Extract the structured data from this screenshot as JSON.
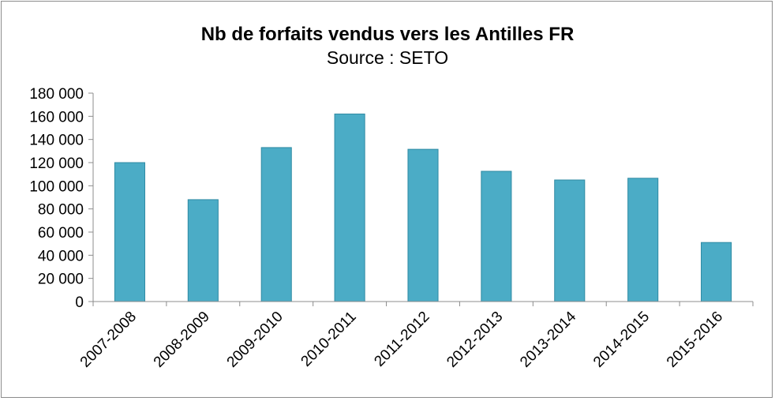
{
  "chart_data": {
    "type": "bar",
    "title": "Nb de forfaits vendus vers les Antilles FR",
    "subtitle": "Source : SETO",
    "xlabel": "",
    "ylabel": "",
    "categories": [
      "2007-2008",
      "2008-2009",
      "2009-2010",
      "2010-2011",
      "2011-2012",
      "2012-2013",
      "2013-2014",
      "2014-2015",
      "2015-2016"
    ],
    "values": [
      120000,
      88000,
      133000,
      162000,
      131500,
      112500,
      105000,
      106500,
      51000
    ],
    "ylim": [
      0,
      180000
    ],
    "yticks": [
      0,
      20000,
      40000,
      60000,
      80000,
      100000,
      120000,
      140000,
      160000,
      180000
    ],
    "ytick_labels": [
      "0",
      "20 000",
      "40 000",
      "60 000",
      "80 000",
      "100 000",
      "120 000",
      "140 000",
      "160 000",
      "180 000"
    ],
    "grid": false,
    "legend": "none",
    "bar_color": "#4bacc6",
    "bar_edge_color": "#2f8aa3"
  }
}
